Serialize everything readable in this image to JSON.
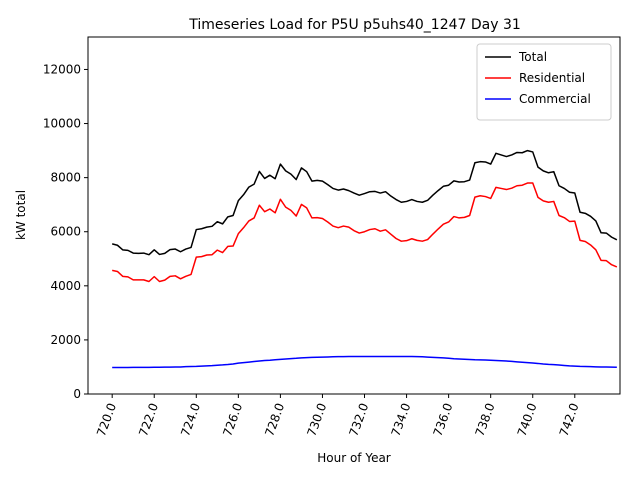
{
  "chart_data": {
    "type": "line",
    "title": "Timeseries Load for P5U p5uhs40_1247  Day 31",
    "xlabel": "Hour of Year",
    "ylabel": "kW total",
    "xlim": [
      718.85,
      744.15
    ],
    "ylim": [
      0,
      13200
    ],
    "xticks": [
      "720.0",
      "722.0",
      "724.0",
      "726.0",
      "728.0",
      "730.0",
      "732.0",
      "734.0",
      "736.0",
      "738.0",
      "740.0",
      "742.0"
    ],
    "yticks": [
      "0",
      "2000",
      "4000",
      "6000",
      "8000",
      "10000",
      "12000"
    ],
    "legend_position": "top-right",
    "x_start": 720.0,
    "x_step": 0.25,
    "series": [
      {
        "name": "Total",
        "color": "#000000",
        "values": [
          5550,
          5500,
          5330,
          5310,
          5210,
          5200,
          5210,
          5150,
          5330,
          5160,
          5200,
          5340,
          5360,
          5260,
          5360,
          5420,
          6080,
          6110,
          6170,
          6200,
          6370,
          6290,
          6550,
          6600,
          7150,
          7370,
          7650,
          7760,
          8230,
          7970,
          8090,
          7960,
          8500,
          8250,
          8130,
          7930,
          8360,
          8220,
          7870,
          7900,
          7870,
          7740,
          7600,
          7540,
          7580,
          7520,
          7430,
          7350,
          7410,
          7480,
          7490,
          7430,
          7480,
          7320,
          7190,
          7090,
          7120,
          7190,
          7120,
          7090,
          7160,
          7350,
          7520,
          7680,
          7720,
          7880,
          7840,
          7850,
          7910,
          8550,
          8590,
          8580,
          8500,
          8900,
          8840,
          8780,
          8840,
          8930,
          8920,
          9000,
          8950,
          8390,
          8250,
          8180,
          8220,
          7700,
          7600,
          7460,
          7430,
          6720,
          6680,
          6570,
          6400,
          5960,
          5950,
          5800,
          5700
        ]
      },
      {
        "name": "Residential",
        "color": "#ff0000",
        "values": [
          4570,
          4530,
          4350,
          4330,
          4220,
          4220,
          4220,
          4160,
          4340,
          4160,
          4210,
          4350,
          4370,
          4260,
          4350,
          4420,
          5060,
          5080,
          5140,
          5150,
          5320,
          5230,
          5460,
          5470,
          5930,
          6150,
          6400,
          6510,
          6980,
          6740,
          6840,
          6700,
          7200,
          6910,
          6790,
          6580,
          7010,
          6880,
          6510,
          6520,
          6490,
          6360,
          6210,
          6150,
          6210,
          6170,
          6040,
          5950,
          6000,
          6080,
          6110,
          6020,
          6070,
          5910,
          5750,
          5650,
          5670,
          5740,
          5680,
          5650,
          5710,
          5910,
          6100,
          6280,
          6360,
          6560,
          6510,
          6530,
          6600,
          7280,
          7330,
          7300,
          7230,
          7640,
          7600,
          7560,
          7610,
          7700,
          7720,
          7800,
          7800,
          7270,
          7140,
          7090,
          7120,
          6600,
          6520,
          6380,
          6390,
          5680,
          5640,
          5510,
          5330,
          4940,
          4930,
          4780,
          4700
        ]
      },
      {
        "name": "Commercial",
        "color": "#0000ff",
        "values": [
          980,
          980,
          980,
          980,
          985,
          985,
          985,
          985,
          990,
          990,
          995,
          995,
          1000,
          1000,
          1010,
          1015,
          1020,
          1030,
          1040,
          1050,
          1065,
          1075,
          1090,
          1110,
          1140,
          1160,
          1180,
          1200,
          1220,
          1240,
          1250,
          1265,
          1280,
          1295,
          1310,
          1320,
          1335,
          1345,
          1355,
          1360,
          1365,
          1370,
          1375,
          1380,
          1380,
          1385,
          1385,
          1385,
          1385,
          1385,
          1385,
          1385,
          1385,
          1385,
          1385,
          1385,
          1385,
          1385,
          1380,
          1375,
          1365,
          1355,
          1345,
          1335,
          1320,
          1305,
          1295,
          1285,
          1275,
          1265,
          1260,
          1255,
          1250,
          1240,
          1230,
          1220,
          1205,
          1190,
          1175,
          1160,
          1145,
          1130,
          1110,
          1095,
          1085,
          1070,
          1055,
          1040,
          1030,
          1020,
          1015,
          1010,
          1005,
          1000,
          1000,
          995,
          990
        ]
      }
    ]
  }
}
